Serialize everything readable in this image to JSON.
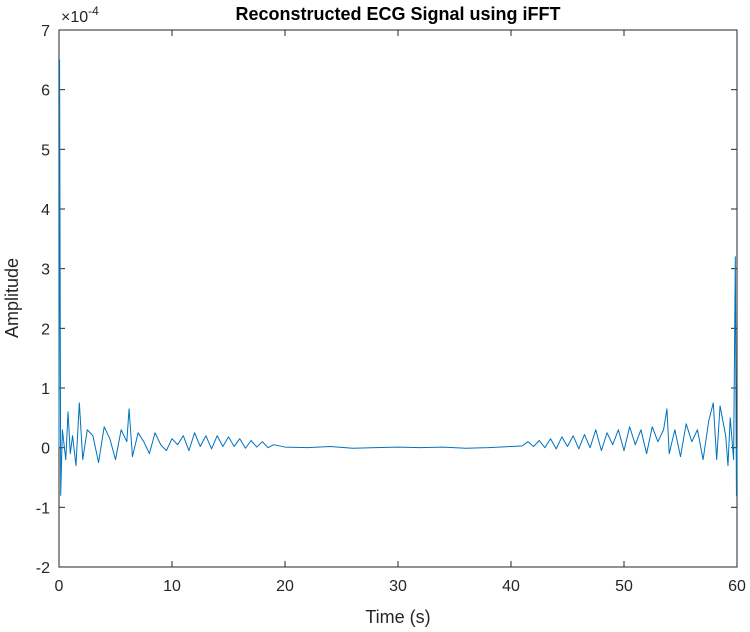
{
  "chart_data": {
    "type": "line",
    "title": "Reconstructed ECG Signal using iFFT",
    "xlabel": "Time (s)",
    "ylabel": "Amplitude",
    "xlim": [
      0,
      60
    ],
    "ylim": [
      -2,
      7
    ],
    "y_exponent_base": "×10",
    "y_exponent": "-4",
    "x_ticks": [
      0,
      10,
      20,
      30,
      40,
      50,
      60
    ],
    "x_tick_labels": [
      "0",
      "10",
      "20",
      "30",
      "40",
      "50",
      "60"
    ],
    "y_ticks": [
      -2,
      -1,
      0,
      1,
      2,
      3,
      4,
      5,
      6,
      7
    ],
    "y_tick_labels": [
      "-2",
      "-1",
      "0",
      "1",
      "2",
      "3",
      "4",
      "5",
      "6",
      "7"
    ],
    "grid": false,
    "colors": {
      "line": "#0072BD",
      "axes": "#262626",
      "title": "#000000"
    },
    "series": [
      {
        "x": [
          0,
          0.05,
          0.15,
          0.3,
          0.6,
          0.8,
          1,
          1.2,
          1.5,
          1.8,
          2.1,
          2.5,
          3,
          3.5,
          4,
          4.5,
          5,
          5.5,
          6,
          6.2,
          6.5,
          7,
          7.5,
          8,
          8.5,
          9,
          9.5,
          10,
          10.5,
          11,
          11.5,
          12,
          12.5,
          13,
          13.5,
          14,
          14.5,
          15,
          15.5,
          16,
          16.5,
          17,
          17.5,
          18,
          18.5,
          19,
          20,
          22,
          24,
          26,
          28,
          30,
          32,
          34,
          36,
          38,
          40,
          41,
          41.5,
          42,
          42.5,
          43,
          43.5,
          44,
          44.5,
          45,
          45.5,
          46,
          46.5,
          47,
          47.5,
          48,
          48.5,
          49,
          49.5,
          50,
          50.5,
          51,
          51.5,
          52,
          52.5,
          53,
          53.5,
          53.8,
          54,
          54.5,
          55,
          55.5,
          56,
          56.5,
          57,
          57.5,
          57.9,
          58.2,
          58.5,
          59,
          59.2,
          59.4,
          59.7,
          59.85,
          59.95,
          60
        ],
        "y": [
          0,
          6.5,
          -0.8,
          0.3,
          -0.2,
          0.6,
          -0.1,
          0.2,
          -0.3,
          0.75,
          -0.2,
          0.3,
          0.2,
          -0.25,
          0.35,
          0.15,
          -0.2,
          0.3,
          0.1,
          0.65,
          -0.15,
          0.25,
          0.1,
          -0.1,
          0.25,
          0.05,
          -0.05,
          0.15,
          0.05,
          0.2,
          -0.05,
          0.25,
          0.02,
          0.2,
          -0.02,
          0.2,
          0.02,
          0.18,
          0.02,
          0.15,
          -0.01,
          0.12,
          0.01,
          0.1,
          0.0,
          0.05,
          0.01,
          0.0,
          0.02,
          -0.01,
          0.0,
          0.01,
          0.0,
          0.01,
          -0.01,
          0.0,
          0.02,
          0.03,
          0.1,
          0.02,
          0.12,
          0.0,
          0.15,
          -0.02,
          0.18,
          0.02,
          0.2,
          -0.02,
          0.22,
          0.0,
          0.3,
          -0.05,
          0.25,
          0.05,
          0.3,
          -0.05,
          0.35,
          0.05,
          0.3,
          -0.1,
          0.35,
          0.1,
          0.3,
          0.65,
          -0.1,
          0.3,
          -0.15,
          0.4,
          0.1,
          0.3,
          -0.2,
          0.45,
          0.75,
          -0.2,
          0.7,
          0.2,
          -0.3,
          0.5,
          -0.2,
          3.2,
          -0.8,
          0
        ]
      }
    ]
  }
}
